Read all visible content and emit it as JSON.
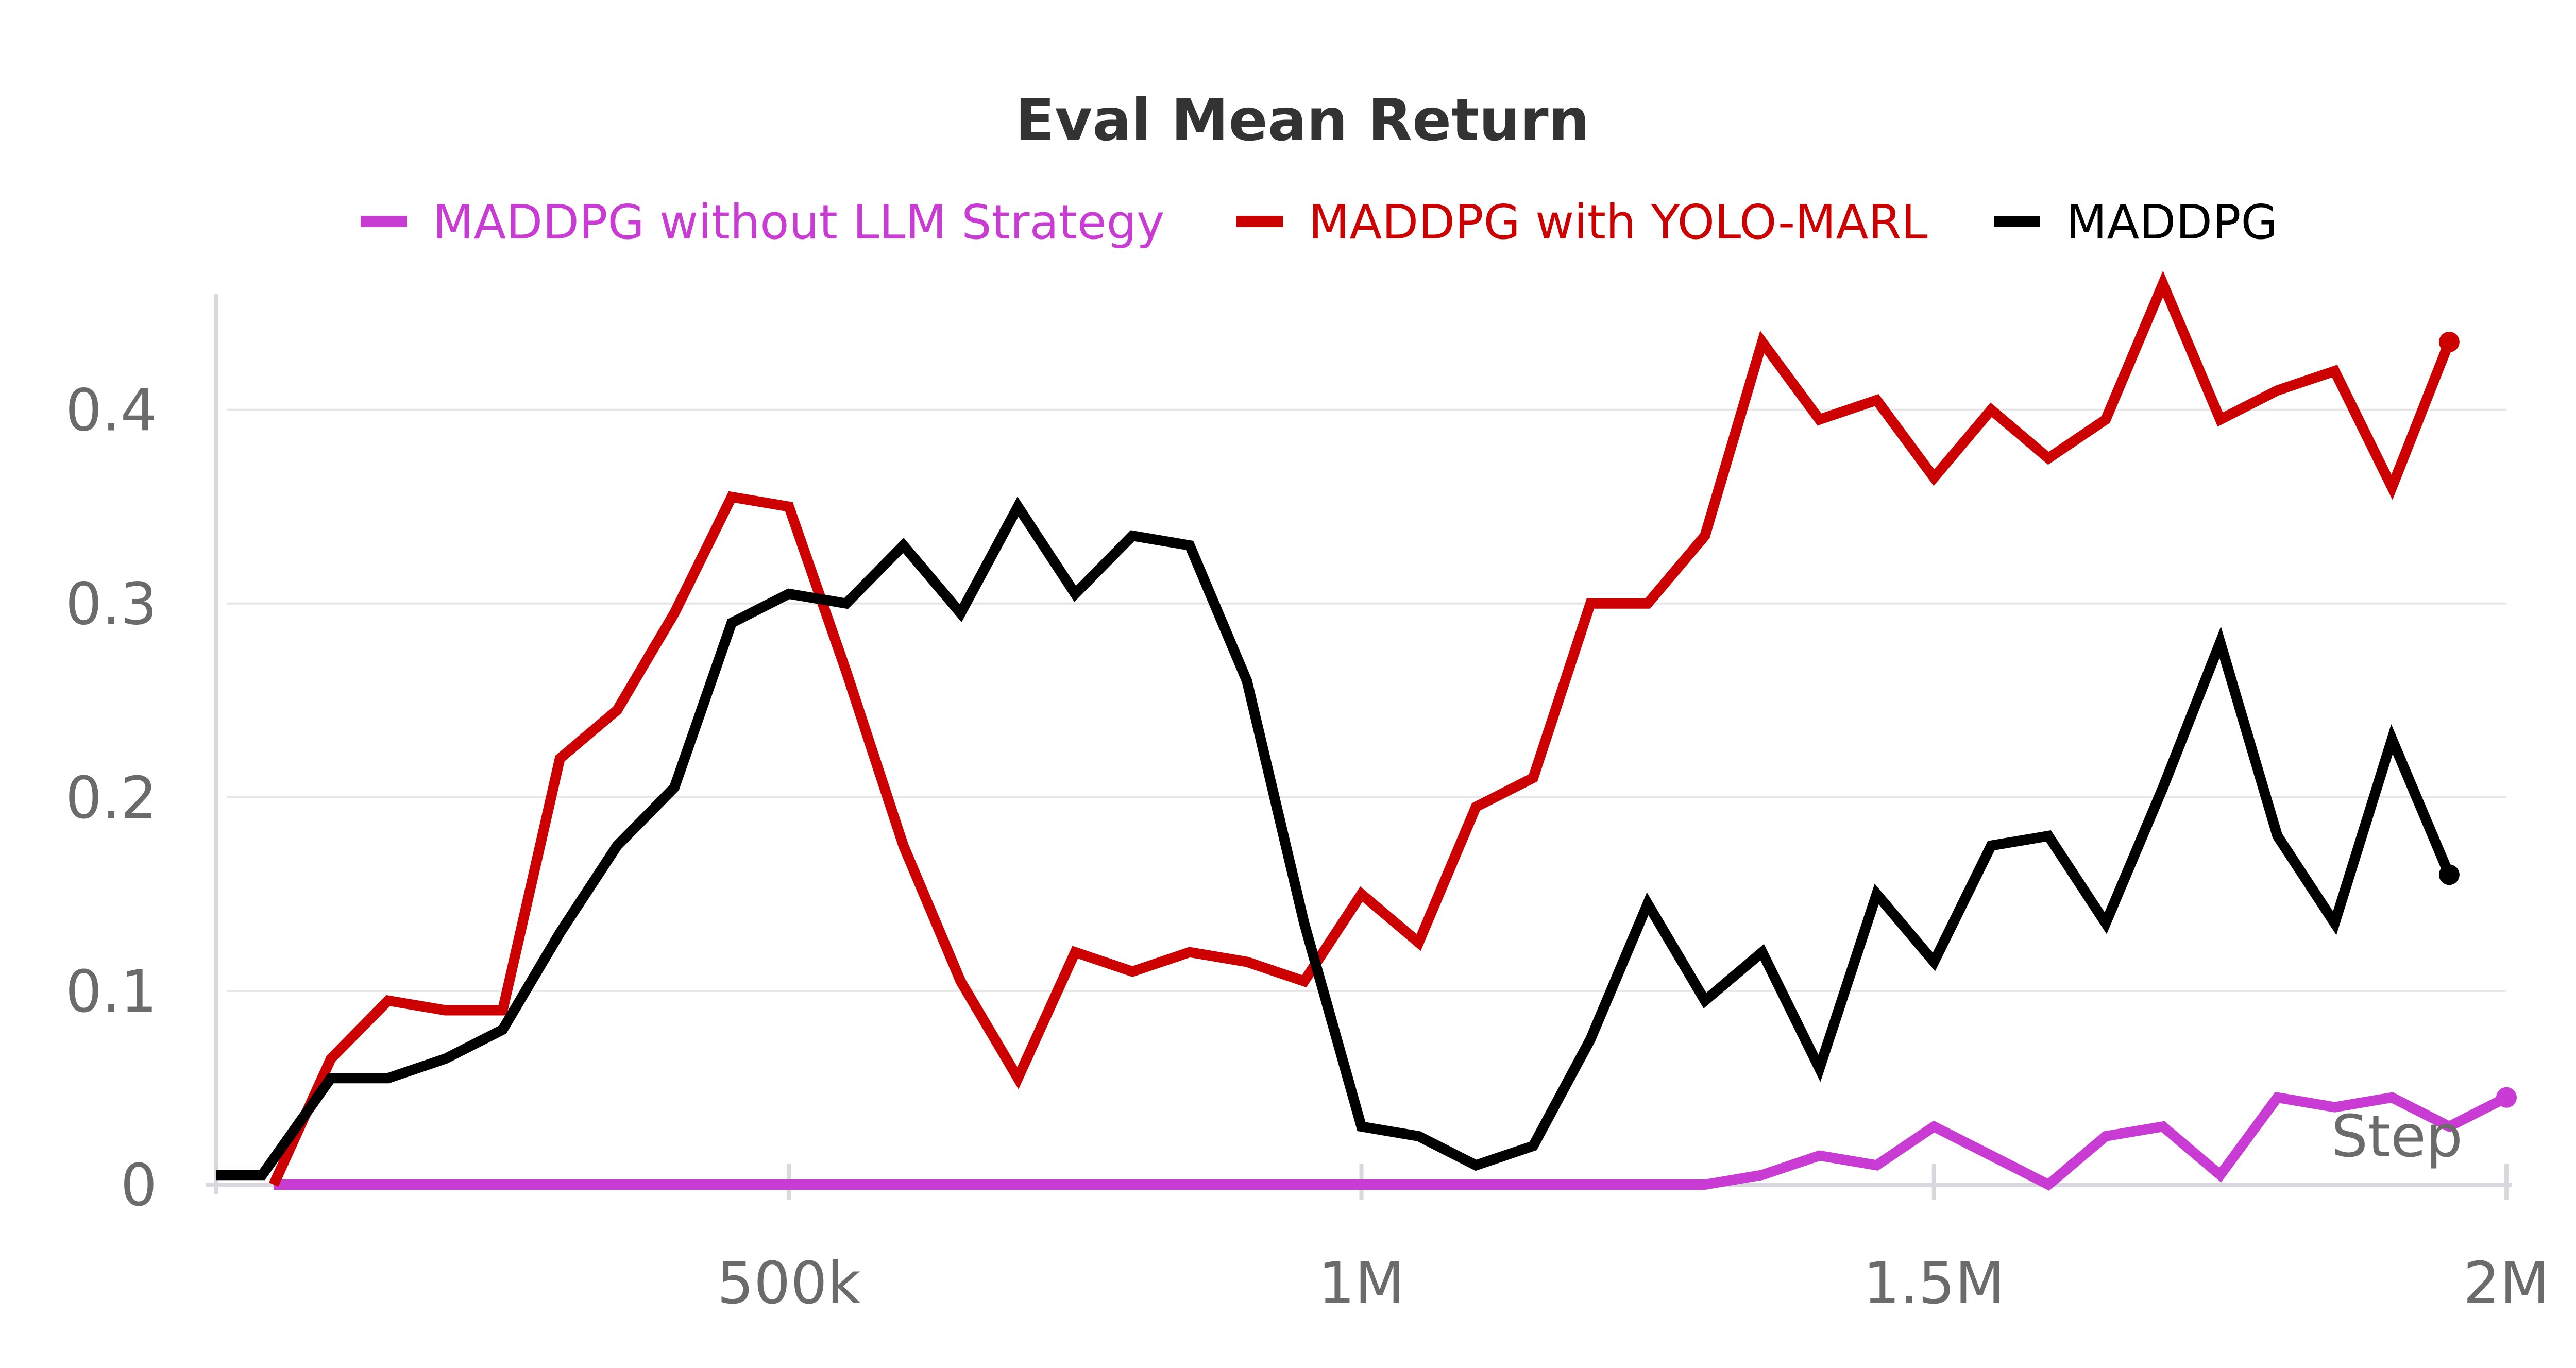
{
  "chart_data": {
    "type": "line",
    "title": "Eval Mean Return",
    "xlabel": "Step",
    "ylabel": "",
    "xlim": [
      0,
      2000000
    ],
    "ylim": [
      0,
      0.46
    ],
    "x_ticks": [
      500000,
      1000000,
      1500000,
      2000000
    ],
    "x_tick_labels": [
      "500k",
      "1M",
      "1.5M",
      "2M"
    ],
    "y_ticks": [
      0,
      0.1,
      0.2,
      0.3,
      0.4
    ],
    "y_tick_labels": [
      "0",
      "0.1",
      "0.2",
      "0.3",
      "0.4"
    ],
    "grid": true,
    "legend_position": "top",
    "series": [
      {
        "name": "MADDPG without LLM Strategy",
        "color": "#c93cd3",
        "points": [
          [
            50000,
            0
          ],
          [
            100000,
            0
          ],
          [
            150000,
            0
          ],
          [
            200000,
            0
          ],
          [
            250000,
            0
          ],
          [
            300000,
            0
          ],
          [
            350000,
            0
          ],
          [
            400000,
            0
          ],
          [
            450000,
            0
          ],
          [
            500000,
            0
          ],
          [
            550000,
            0
          ],
          [
            600000,
            0
          ],
          [
            650000,
            0
          ],
          [
            700000,
            0
          ],
          [
            750000,
            0
          ],
          [
            800000,
            0
          ],
          [
            850000,
            0
          ],
          [
            900000,
            0
          ],
          [
            950000,
            0
          ],
          [
            1000000,
            0
          ],
          [
            1050000,
            0
          ],
          [
            1100000,
            0
          ],
          [
            1150000,
            0
          ],
          [
            1200000,
            0
          ],
          [
            1250000,
            0
          ],
          [
            1300000,
            0
          ],
          [
            1350000,
            0.005
          ],
          [
            1400000,
            0.015
          ],
          [
            1450000,
            0.01
          ],
          [
            1500000,
            0.03
          ],
          [
            1550000,
            0.015
          ],
          [
            1600000,
            0
          ],
          [
            1650000,
            0.025
          ],
          [
            1700000,
            0.03
          ],
          [
            1750000,
            0.005
          ],
          [
            1800000,
            0.045
          ],
          [
            1850000,
            0.04
          ],
          [
            1900000,
            0.045
          ],
          [
            1950000,
            0.03
          ],
          [
            2000000,
            0.045
          ]
        ]
      },
      {
        "name": "MADDPG with YOLO-MARL",
        "color": "#cc0000",
        "points": [
          [
            50000,
            0
          ],
          [
            100000,
            0.065
          ],
          [
            150000,
            0.095
          ],
          [
            200000,
            0.09
          ],
          [
            250000,
            0.09
          ],
          [
            300000,
            0.22
          ],
          [
            350000,
            0.245
          ],
          [
            400000,
            0.295
          ],
          [
            450000,
            0.355
          ],
          [
            500000,
            0.35
          ],
          [
            550000,
            0.265
          ],
          [
            600000,
            0.175
          ],
          [
            650000,
            0.105
          ],
          [
            700000,
            0.055
          ],
          [
            750000,
            0.12
          ],
          [
            800000,
            0.11
          ],
          [
            850000,
            0.12
          ],
          [
            900000,
            0.115
          ],
          [
            950000,
            0.105
          ],
          [
            1000000,
            0.15
          ],
          [
            1050000,
            0.125
          ],
          [
            1100000,
            0.195
          ],
          [
            1150000,
            0.21
          ],
          [
            1200000,
            0.3
          ],
          [
            1250000,
            0.3
          ],
          [
            1300000,
            0.335
          ],
          [
            1350000,
            0.435
          ],
          [
            1400000,
            0.395
          ],
          [
            1450000,
            0.405
          ],
          [
            1500000,
            0.365
          ],
          [
            1550000,
            0.4
          ],
          [
            1600000,
            0.375
          ],
          [
            1650000,
            0.395
          ],
          [
            1700000,
            0.465
          ],
          [
            1750000,
            0.395
          ],
          [
            1800000,
            0.41
          ],
          [
            1850000,
            0.42
          ],
          [
            1900000,
            0.36
          ],
          [
            1950000,
            0.435
          ]
        ]
      },
      {
        "name": "MADDPG",
        "color": "#000000",
        "points": [
          [
            0,
            0.005
          ],
          [
            40000,
            0.005
          ],
          [
            100000,
            0.055
          ],
          [
            150000,
            0.055
          ],
          [
            200000,
            0.065
          ],
          [
            250000,
            0.08
          ],
          [
            300000,
            0.13
          ],
          [
            350000,
            0.175
          ],
          [
            400000,
            0.205
          ],
          [
            450000,
            0.29
          ],
          [
            500000,
            0.305
          ],
          [
            550000,
            0.3
          ],
          [
            600000,
            0.33
          ],
          [
            650000,
            0.295
          ],
          [
            700000,
            0.35
          ],
          [
            750000,
            0.305
          ],
          [
            800000,
            0.335
          ],
          [
            850000,
            0.33
          ],
          [
            900000,
            0.26
          ],
          [
            950000,
            0.135
          ],
          [
            1000000,
            0.03
          ],
          [
            1050000,
            0.025
          ],
          [
            1100000,
            0.01
          ],
          [
            1150000,
            0.02
          ],
          [
            1200000,
            0.075
          ],
          [
            1250000,
            0.145
          ],
          [
            1300000,
            0.095
          ],
          [
            1350000,
            0.12
          ],
          [
            1400000,
            0.06
          ],
          [
            1450000,
            0.15
          ],
          [
            1500000,
            0.115
          ],
          [
            1550000,
            0.175
          ],
          [
            1600000,
            0.18
          ],
          [
            1650000,
            0.135
          ],
          [
            1700000,
            0.205
          ],
          [
            1750000,
            0.28
          ],
          [
            1800000,
            0.18
          ],
          [
            1850000,
            0.135
          ],
          [
            1900000,
            0.23
          ],
          [
            1950000,
            0.16
          ]
        ]
      }
    ]
  }
}
